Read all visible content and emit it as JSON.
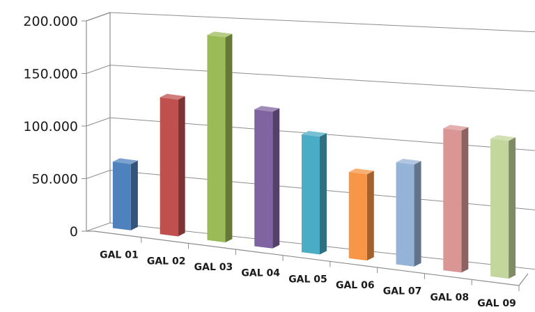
{
  "chart_data": {
    "type": "bar",
    "categories": [
      "GAL 01",
      "GAL 02",
      "GAL 03",
      "GAL 04",
      "GAL 05",
      "GAL 06",
      "GAL 07",
      "GAL 08",
      "GAL 09"
    ],
    "values": [
      63,
      130,
      195,
      130,
      112,
      82,
      97,
      135,
      131
    ],
    "ylim": [
      0,
      200
    ],
    "yticks": [
      0,
      50,
      100,
      150,
      200
    ],
    "ytick_labels": [
      "0",
      "50.000",
      "100.000",
      "150.000",
      "200.000"
    ],
    "grid": true,
    "three_d": true,
    "colors": [
      "#4f81bd",
      "#c0504d",
      "#9bbb59",
      "#8064a2",
      "#4bacc6",
      "#f79646",
      "#95b3d7",
      "#d99694",
      "#c3d69b"
    ]
  }
}
